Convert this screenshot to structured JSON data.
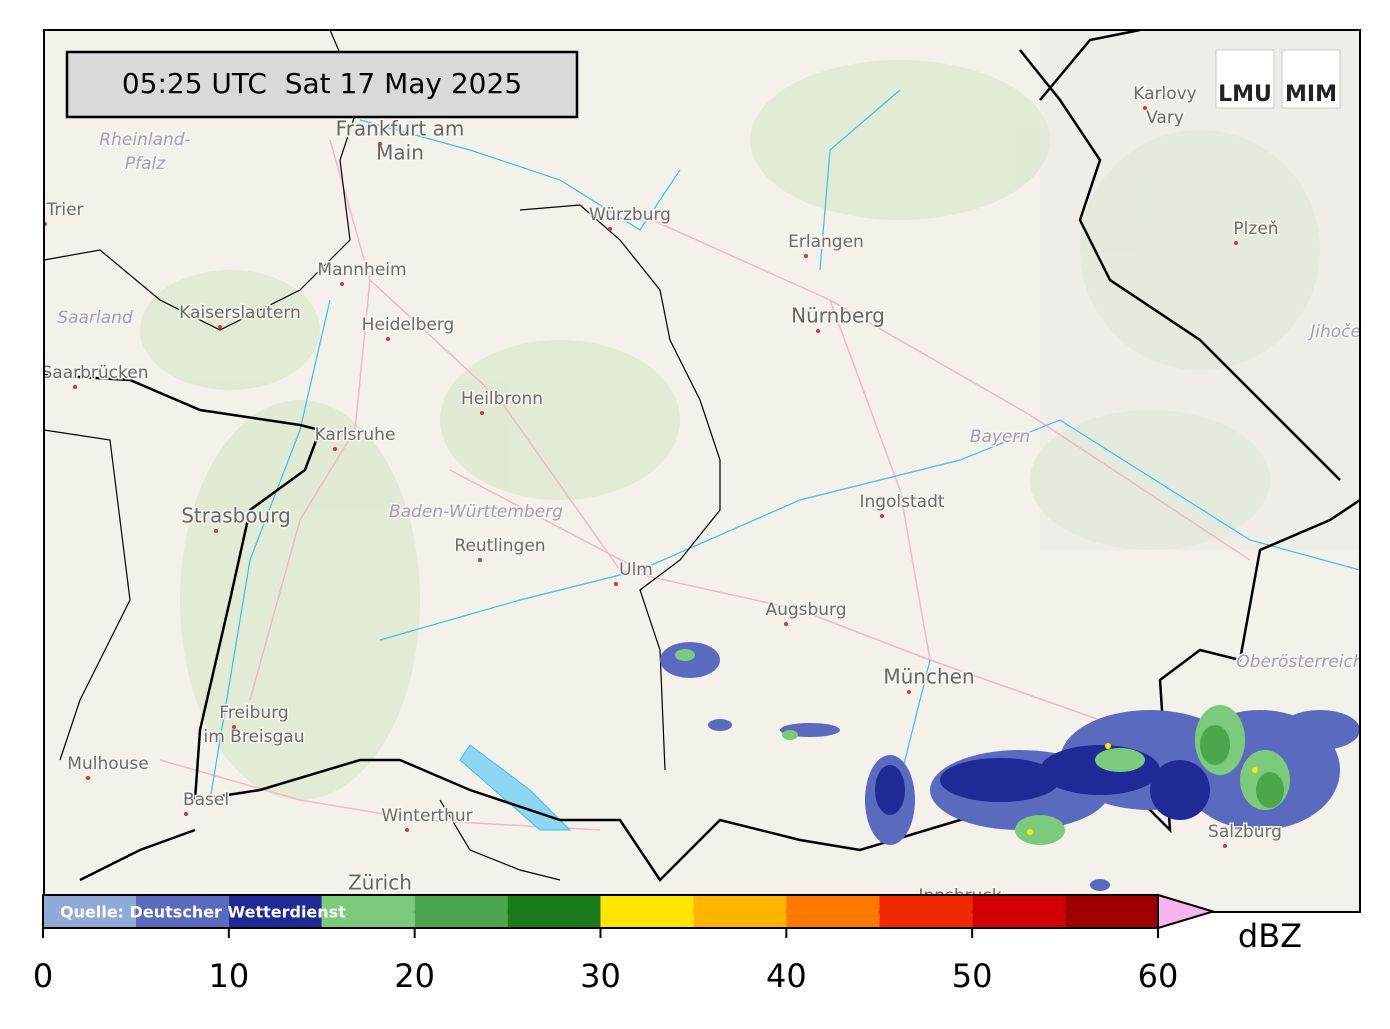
{
  "timestamp": "05:25 UTC  Sat 17 May 2025",
  "logos": [
    "LMU",
    "MIM"
  ],
  "places": [
    {
      "lines": [
        "Frankfurt am",
        "Main"
      ],
      "kind": "major"
    },
    {
      "lines": [
        "Rheinland-",
        "Pfalz"
      ],
      "kind": "region"
    },
    {
      "lines": [
        "Trier"
      ],
      "kind": "city"
    },
    {
      "lines": [
        "Saarland"
      ],
      "kind": "region"
    },
    {
      "lines": [
        "Saarbrücken"
      ],
      "kind": "city"
    },
    {
      "lines": [
        "Kaiserslautern"
      ],
      "kind": "city"
    },
    {
      "lines": [
        "Mannheim"
      ],
      "kind": "city"
    },
    {
      "lines": [
        "Heidelberg"
      ],
      "kind": "city"
    },
    {
      "lines": [
        "Würzburg"
      ],
      "kind": "city"
    },
    {
      "lines": [
        "Erlangen"
      ],
      "kind": "city"
    },
    {
      "lines": [
        "Nürnberg"
      ],
      "kind": "major"
    },
    {
      "lines": [
        "Heilbronn"
      ],
      "kind": "city"
    },
    {
      "lines": [
        "Karlsruhe"
      ],
      "kind": "city"
    },
    {
      "lines": [
        "Strasbourg"
      ],
      "kind": "major"
    },
    {
      "lines": [
        "Baden-Württemberg"
      ],
      "kind": "region"
    },
    {
      "lines": [
        "Reutlingen"
      ],
      "kind": "city"
    },
    {
      "lines": [
        "Ulm"
      ],
      "kind": "city"
    },
    {
      "lines": [
        "Augsburg"
      ],
      "kind": "city"
    },
    {
      "lines": [
        "Ingolstadt"
      ],
      "kind": "city"
    },
    {
      "lines": [
        "Bayern"
      ],
      "kind": "region"
    },
    {
      "lines": [
        "München"
      ],
      "kind": "major"
    },
    {
      "lines": [
        "Freiburg",
        "im Breisgau"
      ],
      "kind": "city"
    },
    {
      "lines": [
        "Mulhouse"
      ],
      "kind": "city"
    },
    {
      "lines": [
        "Basel"
      ],
      "kind": "city"
    },
    {
      "lines": [
        "Winterthur"
      ],
      "kind": "city"
    },
    {
      "lines": [
        "Zürich"
      ],
      "kind": "major"
    },
    {
      "lines": [
        "Innsbruck"
      ],
      "kind": "city"
    },
    {
      "lines": [
        "Oberösterreich"
      ],
      "kind": "region"
    },
    {
      "lines": [
        "Salzburg"
      ],
      "kind": "city"
    },
    {
      "lines": [
        "Karlovy",
        "Vary"
      ],
      "kind": "city"
    },
    {
      "lines": [
        "Plzeň"
      ],
      "kind": "city"
    },
    {
      "lines": [
        "Jihočeský"
      ],
      "kind": "region"
    }
  ],
  "colorbar": {
    "bounds": [
      0,
      5,
      10,
      15,
      20,
      25,
      30,
      35,
      40,
      45,
      50,
      55,
      60
    ],
    "colors": [
      "#8faad6",
      "#5a6bbf",
      "#1f2a96",
      "#7ccb7c",
      "#4ca64c",
      "#1a7a1a",
      "#ffe600",
      "#ffb400",
      "#ff7800",
      "#f02800",
      "#d20000",
      "#a00000"
    ],
    "extend_color": "#f8b4f0",
    "ticks": [
      0,
      10,
      20,
      30,
      40,
      50,
      60
    ],
    "unit": "dBZ",
    "source": "Quelle: Deutscher Wetterdienst"
  }
}
